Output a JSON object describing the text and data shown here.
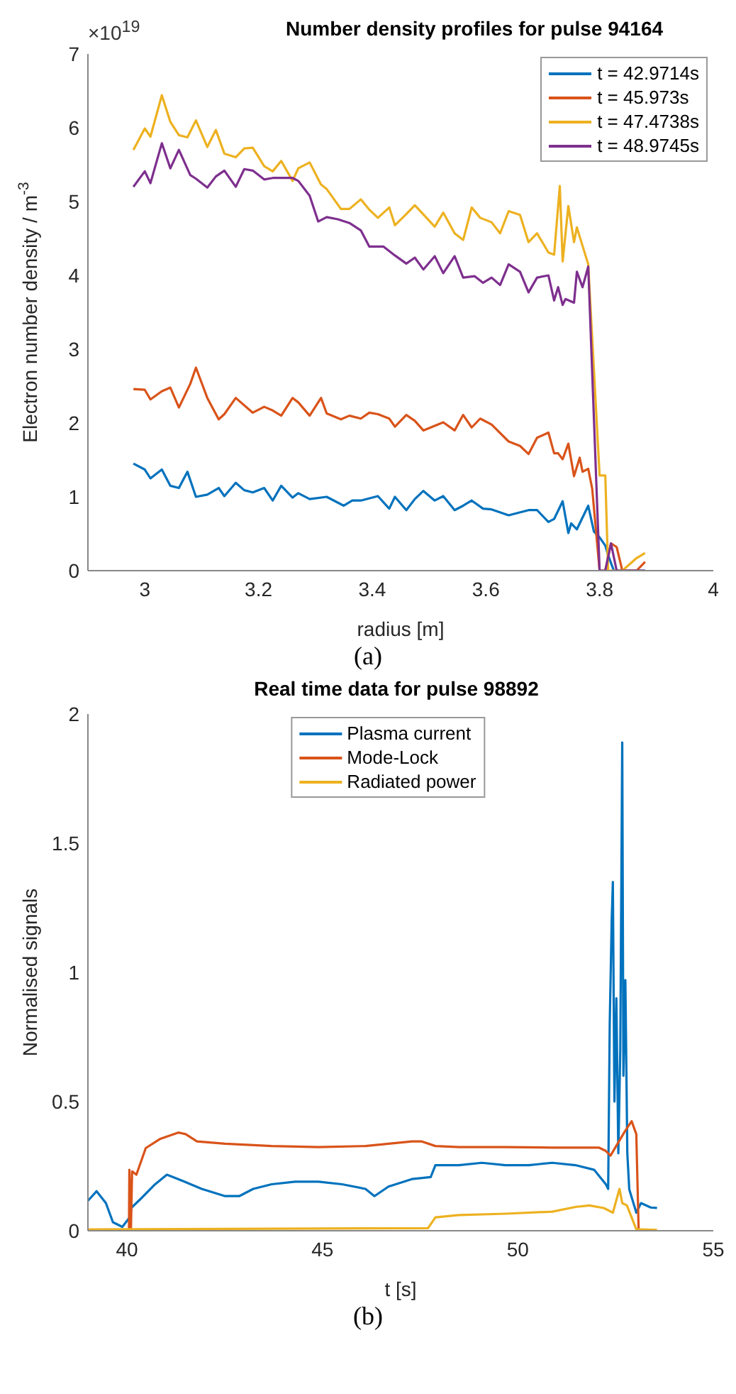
{
  "chart_data": [
    {
      "type": "line",
      "title": "Number density profiles for pulse 94164",
      "xlabel": "radius [m]",
      "ylabel": "Electron number density / m$^{-3}$",
      "annotations": [
        "×10$^{19}$",
        "(a)"
      ],
      "xlim": [
        2.9,
        4
      ],
      "xticks": [
        3,
        3.2,
        3.4,
        3.6,
        3.8,
        4
      ],
      "ylim": [
        0,
        7
      ],
      "yticks": [
        0,
        1,
        2,
        3,
        4,
        5,
        6,
        7
      ],
      "grid": false,
      "legend": "top right",
      "marker": "none",
      "line_style": "solid",
      "series": [
        {
          "name": "t = 42.9714s",
          "color": "#0072bd",
          "x": [
            2.98,
            3.0,
            3.01,
            3.03,
            3.045,
            3.06,
            3.075,
            3.09,
            3.11,
            3.13,
            3.14,
            3.16,
            3.175,
            3.19,
            3.21,
            3.225,
            3.24,
            3.26,
            3.27,
            3.29,
            3.32,
            3.35,
            3.365,
            3.38,
            3.41,
            3.43,
            3.44,
            3.46,
            3.475,
            3.49,
            3.51,
            3.525,
            3.545,
            3.56,
            3.575,
            3.595,
            3.61,
            3.64,
            3.675,
            3.69,
            3.71,
            3.72,
            3.735,
            3.745,
            3.75,
            3.76,
            3.78,
            3.79,
            3.8,
            3.81,
            3.815,
            3.825,
            3.88
          ],
          "values": [
            1.45,
            1.37,
            1.25,
            1.37,
            1.15,
            1.12,
            1.34,
            1.0,
            1.03,
            1.12,
            1.01,
            1.19,
            1.09,
            1.06,
            1.12,
            0.95,
            1.15,
            0.99,
            1.05,
            0.97,
            1.0,
            0.88,
            0.95,
            0.95,
            1.01,
            0.84,
            1.0,
            0.82,
            0.97,
            1.08,
            0.95,
            1.01,
            0.82,
            0.88,
            0.95,
            0.84,
            0.83,
            0.75,
            0.82,
            0.82,
            0.66,
            0.7,
            0.94,
            0.51,
            0.64,
            0.56,
            0.88,
            0.53,
            0.45,
            0.34,
            0.21,
            0,
            0
          ]
        },
        {
          "name": "t = 45.973s",
          "color": "#d95319",
          "x": [
            2.98,
            3.0,
            3.01,
            3.03,
            3.045,
            3.06,
            3.08,
            3.09,
            3.11,
            3.13,
            3.14,
            3.16,
            3.19,
            3.21,
            3.225,
            3.24,
            3.26,
            3.27,
            3.29,
            3.31,
            3.32,
            3.345,
            3.36,
            3.38,
            3.395,
            3.41,
            3.43,
            3.44,
            3.46,
            3.475,
            3.49,
            3.525,
            3.545,
            3.56,
            3.575,
            3.59,
            3.61,
            3.64,
            3.66,
            3.675,
            3.69,
            3.71,
            3.72,
            3.727,
            3.735,
            3.745,
            3.755,
            3.765,
            3.77,
            3.78,
            3.787,
            3.8,
            3.81,
            3.82,
            3.83,
            3.84,
            3.865,
            3.88
          ],
          "values": [
            2.46,
            2.45,
            2.32,
            2.43,
            2.48,
            2.21,
            2.53,
            2.75,
            2.34,
            2.05,
            2.12,
            2.34,
            2.14,
            2.22,
            2.17,
            2.1,
            2.34,
            2.28,
            2.1,
            2.34,
            2.13,
            2.05,
            2.1,
            2.06,
            2.14,
            2.12,
            2.06,
            1.95,
            2.11,
            2.03,
            1.9,
            2.01,
            1.9,
            2.11,
            1.94,
            2.06,
            1.98,
            1.75,
            1.69,
            1.58,
            1.8,
            1.87,
            1.59,
            1.59,
            1.51,
            1.72,
            1.28,
            1.53,
            1.34,
            1.38,
            1.11,
            0,
            0,
            0.37,
            0.32,
            0,
            0,
            0.12
          ]
        },
        {
          "name": "t = 47.4738s",
          "color": "#edb120",
          "x": [
            2.98,
            3.0,
            3.01,
            3.03,
            3.045,
            3.06,
            3.075,
            3.09,
            3.11,
            3.125,
            3.14,
            3.16,
            3.175,
            3.19,
            3.21,
            3.225,
            3.24,
            3.26,
            3.27,
            3.29,
            3.31,
            3.32,
            3.345,
            3.36,
            3.38,
            3.395,
            3.41,
            3.43,
            3.44,
            3.46,
            3.475,
            3.51,
            3.525,
            3.545,
            3.56,
            3.575,
            3.59,
            3.61,
            3.625,
            3.64,
            3.66,
            3.675,
            3.69,
            3.71,
            3.72,
            3.73,
            3.735,
            3.745,
            3.755,
            3.76,
            3.78,
            3.8,
            3.81,
            3.815,
            3.84,
            3.865,
            3.88
          ],
          "values": [
            5.7,
            5.99,
            5.88,
            6.44,
            6.08,
            5.9,
            5.87,
            6.1,
            5.74,
            5.97,
            5.65,
            5.6,
            5.72,
            5.73,
            5.48,
            5.41,
            5.55,
            5.28,
            5.45,
            5.53,
            5.23,
            5.17,
            4.9,
            4.9,
            5.03,
            4.89,
            4.78,
            4.92,
            4.68,
            4.83,
            4.95,
            4.66,
            4.85,
            4.57,
            4.48,
            4.92,
            4.78,
            4.72,
            4.57,
            4.87,
            4.82,
            4.45,
            4.57,
            4.31,
            4.28,
            5.21,
            4.19,
            4.94,
            4.45,
            4.65,
            4.15,
            1.29,
            1.29,
            0,
            0,
            0.17,
            0.24
          ]
        },
        {
          "name": "t = 48.9745s",
          "color": "#7e2f8e",
          "x": [
            2.98,
            3.0,
            3.01,
            3.03,
            3.045,
            3.06,
            3.08,
            3.09,
            3.11,
            3.125,
            3.14,
            3.16,
            3.175,
            3.19,
            3.21,
            3.225,
            3.26,
            3.27,
            3.29,
            3.305,
            3.32,
            3.34,
            3.36,
            3.38,
            3.395,
            3.42,
            3.44,
            3.46,
            3.475,
            3.49,
            3.51,
            3.525,
            3.545,
            3.56,
            3.58,
            3.595,
            3.61,
            3.625,
            3.64,
            3.66,
            3.675,
            3.69,
            3.71,
            3.72,
            3.727,
            3.735,
            3.74,
            3.755,
            3.76,
            3.77,
            3.78,
            3.8,
            3.81,
            3.82,
            3.83,
            3.88
          ],
          "values": [
            5.2,
            5.41,
            5.25,
            5.79,
            5.45,
            5.7,
            5.36,
            5.31,
            5.19,
            5.34,
            5.42,
            5.2,
            5.44,
            5.42,
            5.3,
            5.32,
            5.32,
            5.28,
            5.08,
            4.73,
            4.79,
            4.76,
            4.71,
            4.61,
            4.39,
            4.39,
            4.27,
            4.16,
            4.24,
            4.08,
            4.26,
            4.03,
            4.26,
            3.97,
            3.99,
            3.9,
            3.97,
            3.87,
            4.15,
            4.05,
            3.77,
            3.97,
            4.0,
            3.66,
            3.84,
            3.6,
            3.68,
            3.63,
            4.05,
            3.84,
            4.12,
            0,
            0,
            0.37,
            0,
            0
          ]
        }
      ]
    },
    {
      "type": "line",
      "title": "Real time data for pulse 98892",
      "xlabel": "t [s]",
      "ylabel": "Normalised signals",
      "annotations": [
        "(b)"
      ],
      "xlim": [
        39,
        55
      ],
      "xticks": [
        40,
        45,
        50,
        55
      ],
      "ylim": [
        0,
        2
      ],
      "yticks": [
        0,
        0.5,
        1,
        1.5,
        2
      ],
      "grid": false,
      "legend": "top",
      "marker": "none",
      "line_style": "solid",
      "series": [
        {
          "name": "Plasma current",
          "color": "#0072bd",
          "x": [
            39,
            39.22,
            39.46,
            39.64,
            39.88,
            40.06,
            40.12,
            40.36,
            40.72,
            41.02,
            41.31,
            41.91,
            42.51,
            42.87,
            43.23,
            43.7,
            44.3,
            44.9,
            45.5,
            46.1,
            46.33,
            46.69,
            47.29,
            47.77,
            47.89,
            48.49,
            49.08,
            49.68,
            50.28,
            50.88,
            51.47,
            51.95,
            52.25,
            52.31,
            52.35,
            52.4,
            52.43,
            52.47,
            52.52,
            52.57,
            52.62,
            52.67,
            52.7,
            52.75,
            52.8,
            52.85,
            53.03,
            53.15,
            53.4,
            53.56
          ],
          "values": [
            0.116,
            0.153,
            0.107,
            0.033,
            0.015,
            0.05,
            0.09,
            0.125,
            0.18,
            0.217,
            0.2,
            0.162,
            0.134,
            0.134,
            0.162,
            0.18,
            0.19,
            0.19,
            0.18,
            0.162,
            0.134,
            0.171,
            0.2,
            0.208,
            0.254,
            0.254,
            0.263,
            0.254,
            0.254,
            0.263,
            0.254,
            0.236,
            0.18,
            0.162,
            0.8,
            1.2,
            1.35,
            0.5,
            0.9,
            0.3,
            0.7,
            1.89,
            0.6,
            0.97,
            0.3,
            0.16,
            0.07,
            0.107,
            0.09,
            0.088
          ]
        },
        {
          "name": "Mode-Lock",
          "color": "#d95319",
          "x": [
            39,
            40.05,
            40.06,
            40.1,
            40.13,
            40.24,
            40.48,
            40.84,
            41.31,
            41.5,
            41.79,
            42.51,
            43.7,
            44.9,
            46.1,
            47.29,
            47.53,
            47.89,
            48.49,
            49.68,
            50.88,
            52.07,
            52.25,
            52.37,
            52.55,
            52.73,
            52.91,
            53.03,
            53.09
          ],
          "values": [
            0,
            0,
            0.236,
            0,
            0.23,
            0.217,
            0.32,
            0.355,
            0.38,
            0.374,
            0.346,
            0.337,
            0.328,
            0.324,
            0.328,
            0.346,
            0.346,
            0.328,
            0.324,
            0.324,
            0.322,
            0.322,
            0.309,
            0.291,
            0.337,
            0.383,
            0.424,
            0.374,
            0
          ]
        },
        {
          "name": "Radiated power",
          "color": "#edb120",
          "x": [
            39,
            47.7,
            47.89,
            48.49,
            49.68,
            50.88,
            51.47,
            51.83,
            52.2,
            52.43,
            52.6,
            52.67,
            52.79,
            53.03,
            53.56
          ],
          "values": [
            0.005,
            0.01,
            0.052,
            0.061,
            0.066,
            0.074,
            0.092,
            0.098,
            0.088,
            0.07,
            0.162,
            0.107,
            0.098,
            0.006,
            0.003
          ]
        }
      ]
    }
  ]
}
